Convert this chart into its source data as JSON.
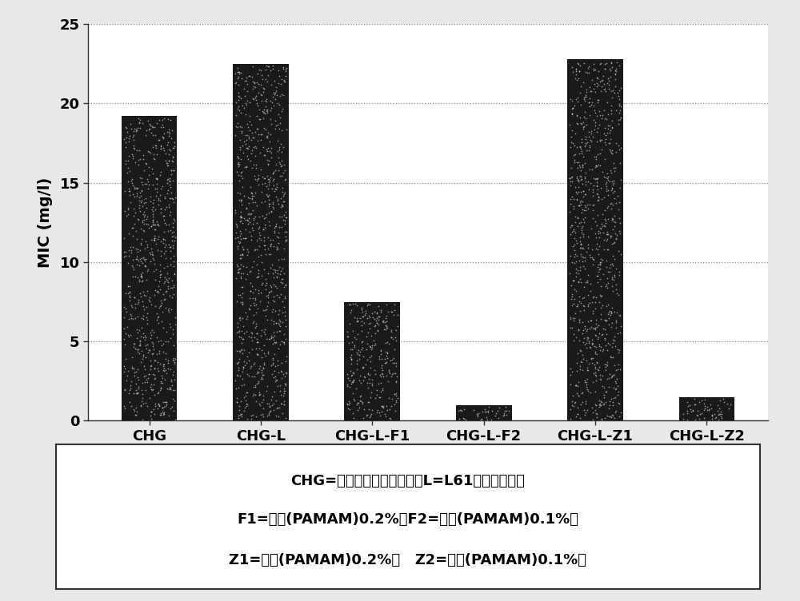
{
  "categories": [
    "CHG",
    "CHG-L",
    "CHG-L-F1",
    "CHG-L-F2",
    "CHG-L-Z1",
    "CHG-L-Z2"
  ],
  "values": [
    19.2,
    22.5,
    7.5,
    1.0,
    22.8,
    1.5
  ],
  "bar_color": "#1a1a1a",
  "ylabel": "MIC (mg/l)",
  "ylim": [
    0,
    25
  ],
  "yticks": [
    0,
    5,
    10,
    15,
    20,
    25
  ],
  "grid_color": "#888888",
  "background_color": "#ffffff",
  "legend_line1": "CHG=氯己啶二葡萄糖酸盐，L=L61嵌段共聚物，",
  "legend_line2": "F1=一代(PAMAM)0.2%，F2=一代(PAMAM)0.1%，",
  "legend_line3": "Z1=零代(PAMAM)0.2%，   Z2=零代(PAMAM)0.1%。",
  "speckle_color": "#cccccc",
  "speckle_size": 1.5,
  "speckle_alpha": 0.7
}
